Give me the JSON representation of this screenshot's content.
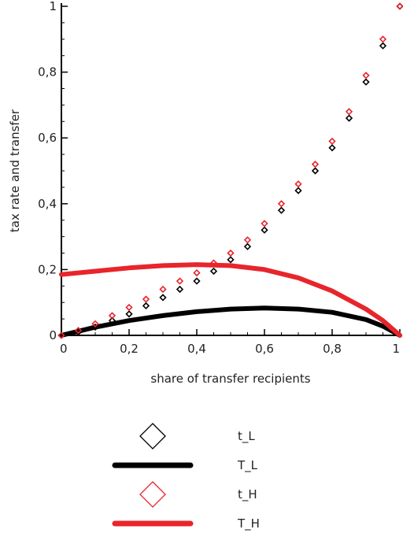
{
  "chart_data": {
    "type": "line",
    "title": "",
    "xlabel": "share of transfer recipients",
    "ylabel": "tax rate and transfer",
    "xlim": [
      0,
      1
    ],
    "ylim": [
      0,
      1
    ],
    "x_ticks": [
      "0",
      "0,2",
      "0,4",
      "0,6",
      "0,8",
      "1"
    ],
    "y_ticks": [
      "0",
      "0,2",
      "0,4",
      "0,6",
      "0,8",
      "1"
    ],
    "grid": false,
    "legend_position": "bottom",
    "series": [
      {
        "name": "t_L",
        "style": "markers",
        "color": "#000000",
        "x": [
          0.0,
          0.05,
          0.1,
          0.15,
          0.2,
          0.25,
          0.3,
          0.35,
          0.4,
          0.45,
          0.5,
          0.55,
          0.6,
          0.65,
          0.7,
          0.75,
          0.8,
          0.85,
          0.9,
          0.95,
          1.0
        ],
        "y": [
          0.0,
          0.01,
          0.025,
          0.045,
          0.065,
          0.09,
          0.115,
          0.14,
          0.165,
          0.195,
          0.23,
          0.27,
          0.32,
          0.38,
          0.44,
          0.5,
          0.57,
          0.66,
          0.77,
          0.88,
          1.0
        ]
      },
      {
        "name": "T_L",
        "style": "line",
        "color": "#000000",
        "x": [
          0.0,
          0.1,
          0.2,
          0.3,
          0.4,
          0.5,
          0.6,
          0.7,
          0.8,
          0.9,
          0.95,
          1.0
        ],
        "y": [
          0.0,
          0.025,
          0.045,
          0.06,
          0.072,
          0.08,
          0.083,
          0.08,
          0.07,
          0.048,
          0.028,
          0.0
        ]
      },
      {
        "name": "t_H",
        "style": "markers",
        "color": "#e8252b",
        "x": [
          0.0,
          0.05,
          0.1,
          0.15,
          0.2,
          0.25,
          0.3,
          0.35,
          0.4,
          0.45,
          0.5,
          0.55,
          0.6,
          0.65,
          0.7,
          0.75,
          0.8,
          0.85,
          0.9,
          0.95,
          1.0
        ],
        "y": [
          0.0,
          0.015,
          0.035,
          0.06,
          0.085,
          0.11,
          0.14,
          0.165,
          0.19,
          0.22,
          0.25,
          0.29,
          0.34,
          0.4,
          0.46,
          0.52,
          0.59,
          0.68,
          0.79,
          0.9,
          1.0
        ]
      },
      {
        "name": "T_H",
        "style": "line",
        "color": "#e8252b",
        "x": [
          0.0,
          0.1,
          0.2,
          0.3,
          0.4,
          0.5,
          0.6,
          0.7,
          0.8,
          0.9,
          0.95,
          1.0
        ],
        "y": [
          0.185,
          0.195,
          0.205,
          0.212,
          0.215,
          0.212,
          0.2,
          0.175,
          0.135,
          0.08,
          0.045,
          0.0
        ]
      }
    ]
  }
}
